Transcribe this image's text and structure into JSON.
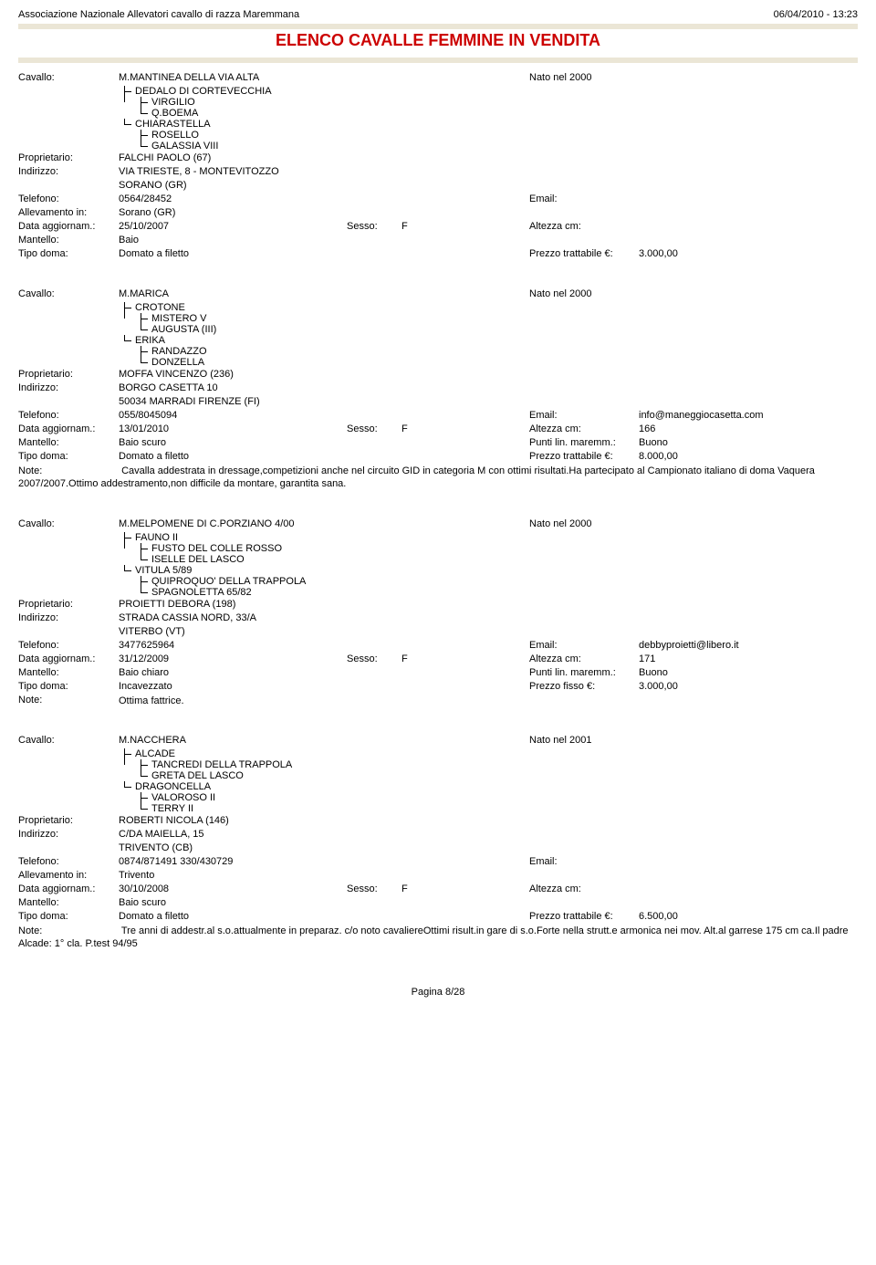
{
  "header": {
    "org": "Associazione Nazionale Allevatori cavallo di razza Maremmana",
    "datetime": "06/04/2010 - 13:23",
    "title": "ELENCO CAVALLE FEMMINE IN VENDITA"
  },
  "labels": {
    "cavallo": "Cavallo:",
    "proprietario": "Proprietario:",
    "indirizzo": "Indirizzo:",
    "telefono": "Telefono:",
    "allevamento": "Allevamento in:",
    "data_agg": "Data aggiornam.:",
    "mantello": "Mantello:",
    "tipo_doma": "Tipo doma:",
    "note": "Note:",
    "nato": "Nato nel",
    "email": "Email:",
    "sesso": "Sesso:",
    "altezza": "Altezza cm:",
    "punti": "Punti lin. maremm.:",
    "prezzo_tratt": "Prezzo trattabile €:",
    "prezzo_fisso": "Prezzo fisso €:"
  },
  "records": [
    {
      "name": "M.MANTINEA DELLA VIA ALTA",
      "year": "2000",
      "pedigree": [
        {
          "indent": 0,
          "mid": true,
          "text": "DEDALO DI CORTEVECCHIA"
        },
        {
          "indent": 1,
          "mid": true,
          "text": "VIRGILIO"
        },
        {
          "indent": 1,
          "mid": false,
          "text": "Q.BOEMA"
        },
        {
          "indent": 0,
          "mid": false,
          "text": "CHIARASTELLA"
        },
        {
          "indent": 1,
          "mid": true,
          "text": "ROSELLO"
        },
        {
          "indent": 1,
          "mid": false,
          "text": "GALASSIA VIII"
        }
      ],
      "proprietario": "FALCHI PAOLO (67)",
      "indirizzo1": "VIA TRIESTE, 8 - MONTEVITOZZO",
      "indirizzo2": "SORANO (GR)",
      "telefono": "0564/28452",
      "email": "",
      "allevamento": "Sorano (GR)",
      "data_agg": "25/10/2007",
      "sesso": "F",
      "altezza": "",
      "mantello": "Baio",
      "punti": "",
      "tipo_doma": "Domato a filetto",
      "prezzo_label": "Prezzo trattabile €:",
      "prezzo": "3.000,00",
      "note": ""
    },
    {
      "name": "M.MARICA",
      "year": "2000",
      "pedigree": [
        {
          "indent": 0,
          "mid": true,
          "text": "CROTONE"
        },
        {
          "indent": 1,
          "mid": true,
          "text": "MISTERO V"
        },
        {
          "indent": 1,
          "mid": false,
          "text": "AUGUSTA (III)"
        },
        {
          "indent": 0,
          "mid": false,
          "text": "ERIKA"
        },
        {
          "indent": 1,
          "mid": true,
          "text": "RANDAZZO"
        },
        {
          "indent": 1,
          "mid": false,
          "text": "DONZELLA"
        }
      ],
      "proprietario": "MOFFA VINCENZO (236)",
      "indirizzo1": "BORGO CASETTA 10",
      "indirizzo2": "50034 MARRADI FIRENZE (FI)",
      "telefono": "055/8045094",
      "email": "info@maneggiocasetta.com",
      "allevamento": "",
      "data_agg": "13/01/2010",
      "sesso": "F",
      "altezza": "166",
      "mantello": "Baio scuro",
      "punti": "Buono",
      "tipo_doma": "Domato a filetto",
      "prezzo_label": "Prezzo trattabile €:",
      "prezzo": "8.000,00",
      "note": "Cavalla addestrata in dressage,competizioni anche nel circuito GID in categoria M con ottimi risultati.Ha partecipato al Campionato italiano di doma Vaquera 2007/2007.Ottimo addestramento,non difficile da montare, garantita sana."
    },
    {
      "name": "M.MELPOMENE DI C.PORZIANO 4/00",
      "year": "2000",
      "pedigree": [
        {
          "indent": 0,
          "mid": true,
          "text": "FAUNO II"
        },
        {
          "indent": 1,
          "mid": true,
          "text": "FUSTO DEL COLLE ROSSO"
        },
        {
          "indent": 1,
          "mid": false,
          "text": "ISELLE DEL LASCO"
        },
        {
          "indent": 0,
          "mid": false,
          "text": "VITULA 5/89"
        },
        {
          "indent": 1,
          "mid": true,
          "text": "QUIPROQUO' DELLA TRAPPOLA"
        },
        {
          "indent": 1,
          "mid": false,
          "text": "SPAGNOLETTA 65/82"
        }
      ],
      "proprietario": "PROIETTI DEBORA (198)",
      "indirizzo1": "STRADA CASSIA NORD, 33/A",
      "indirizzo2": "VITERBO (VT)",
      "telefono": "3477625964",
      "email": "debbyproietti@libero.it",
      "allevamento": "",
      "data_agg": "31/12/2009",
      "sesso": "F",
      "altezza": "171",
      "mantello": "Baio chiaro",
      "punti": "Buono",
      "tipo_doma": "Incavezzato",
      "prezzo_label": "Prezzo fisso €:",
      "prezzo": "3.000,00",
      "note_label_only": true,
      "note": "Ottima fattrice."
    },
    {
      "name": "M.NACCHERA",
      "year": "2001",
      "pedigree": [
        {
          "indent": 0,
          "mid": true,
          "text": "ALCADE"
        },
        {
          "indent": 1,
          "mid": true,
          "text": "TANCREDI DELLA TRAPPOLA"
        },
        {
          "indent": 1,
          "mid": false,
          "text": "GRETA DEL LASCO"
        },
        {
          "indent": 0,
          "mid": false,
          "text": "DRAGONCELLA"
        },
        {
          "indent": 1,
          "mid": true,
          "text": "VALOROSO II"
        },
        {
          "indent": 1,
          "mid": false,
          "text": "TERRY II"
        }
      ],
      "proprietario": "ROBERTI NICOLA (146)",
      "indirizzo1": "C/DA MAIELLA, 15",
      "indirizzo2": "TRIVENTO (CB)",
      "telefono": "0874/871491    330/430729",
      "email": "",
      "allevamento": "Trivento",
      "data_agg": "30/10/2008",
      "sesso": "F",
      "altezza": "",
      "mantello": "Baio scuro",
      "punti": "",
      "tipo_doma": "Domato a filetto",
      "prezzo_label": "Prezzo trattabile €:",
      "prezzo": "6.500,00",
      "note": "Tre anni di addestr.al s.o.attualmente in preparaz. c/o noto cavaliereOttimi risult.in gare di s.o.Forte nella strutt.e armonica nei mov. Alt.al garrese 175 cm ca.Il padre Alcade: 1° cla. P.test 94/95"
    }
  ],
  "footer": "Pagina 8/28"
}
